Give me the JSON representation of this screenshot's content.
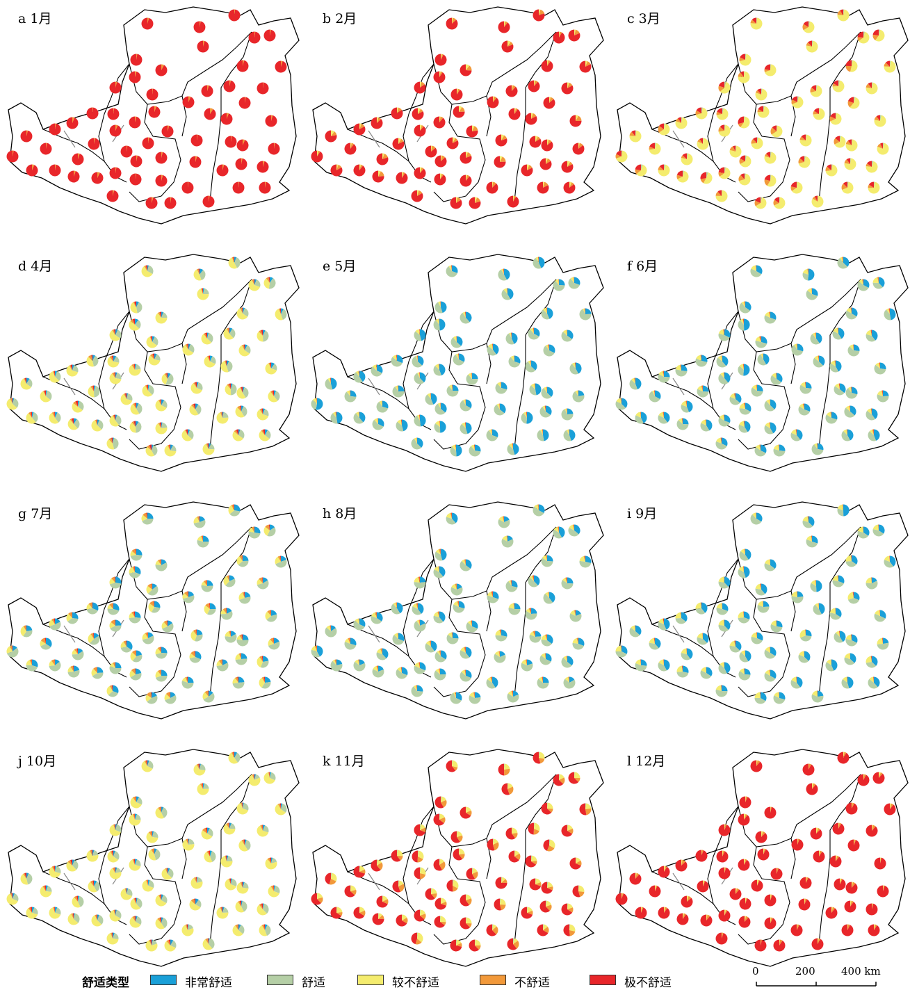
{
  "colors": {
    "very_comfortable": "#1aa0d8",
    "comfortable": "#b5cfa6",
    "less_comfortable": "#f4ec6e",
    "uncomfortable": "#f2993a",
    "very_uncomfortable": "#e8262a"
  },
  "panels": [
    {
      "label": "a  1月"
    },
    {
      "label": "b  2月"
    },
    {
      "label": "c  3月"
    },
    {
      "label": "d  4月"
    },
    {
      "label": "e  5月"
    },
    {
      "label": "f  6月"
    },
    {
      "label": "g  7月"
    },
    {
      "label": "h  8月"
    },
    {
      "label": "i  9月"
    },
    {
      "label": "j  10月"
    },
    {
      "label": "k  11月"
    },
    {
      "label": "l  12月"
    }
  ],
  "monthly_composition": [
    [
      0,
      0,
      0,
      0.04,
      0.96
    ],
    [
      0,
      0,
      0.05,
      0.1,
      0.85
    ],
    [
      0,
      0.03,
      0.7,
      0.12,
      0.15
    ],
    [
      0.06,
      0.3,
      0.55,
      0.05,
      0.04
    ],
    [
      0.35,
      0.55,
      0.08,
      0.01,
      0.01
    ],
    [
      0.35,
      0.5,
      0.12,
      0.02,
      0.01
    ],
    [
      0.22,
      0.48,
      0.2,
      0.08,
      0.02
    ],
    [
      0.3,
      0.55,
      0.11,
      0.03,
      0.01
    ],
    [
      0.35,
      0.45,
      0.18,
      0.01,
      0.01
    ],
    [
      0.05,
      0.25,
      0.62,
      0.05,
      0.03
    ],
    [
      0,
      0.02,
      0.2,
      0.18,
      0.6
    ],
    [
      0,
      0,
      0.03,
      0.05,
      0.92
    ]
  ],
  "legend": {
    "title": "舒适类型",
    "items": [
      {
        "label": "非常舒适",
        "color": "#1aa0d8"
      },
      {
        "label": "舒适",
        "color": "#b5cfa6"
      },
      {
        "label": "较不舒适",
        "color": "#f4ec6e"
      },
      {
        "label": "不舒适",
        "color": "#f2993a"
      },
      {
        "label": "极不舒适",
        "color": "#e8262a"
      }
    ]
  },
  "scale_bar": {
    "ticks": [
      "0",
      "200",
      "400 km"
    ]
  }
}
